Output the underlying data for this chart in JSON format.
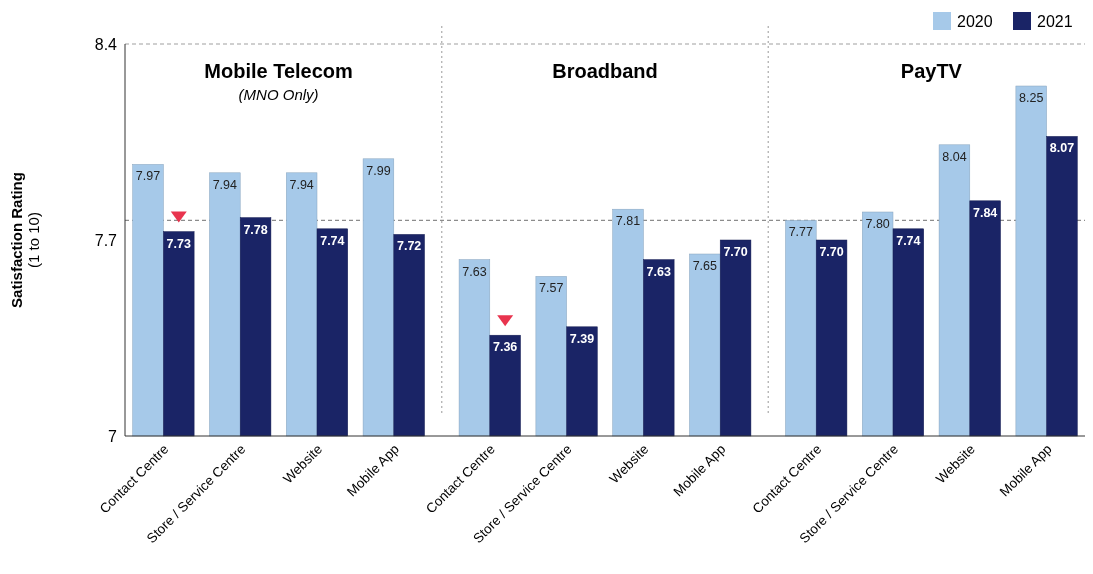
{
  "chart_data": {
    "type": "bar",
    "ylabel": "Satisfaction Rating\n(1 to 10)",
    "categories": [
      "Contact Centre",
      "Store / Service Centre",
      "Website",
      "Mobile App",
      "Contact Centre",
      "Store / Service Centre",
      "Website",
      "Mobile App",
      "Contact Centre",
      "Store / Service Centre",
      "Website",
      "Mobile App"
    ],
    "series": [
      {
        "name": "2020",
        "color": "#a6c9e9",
        "values": [
          7.97,
          7.94,
          7.94,
          7.99,
          7.63,
          7.57,
          7.81,
          7.65,
          7.77,
          7.8,
          8.04,
          8.25
        ],
        "value_labels": [
          "7.97",
          "7.94",
          "7.94",
          "7.99",
          "7.63",
          "7.57",
          "7.81",
          "7.65",
          "7.77",
          "7.80",
          "8.04",
          "8.25"
        ]
      },
      {
        "name": "2021",
        "color": "#1a2466",
        "values": [
          7.73,
          7.78,
          7.74,
          7.72,
          7.36,
          7.39,
          7.63,
          7.7,
          7.7,
          7.74,
          7.84,
          8.07
        ],
        "value_labels": [
          "7.73",
          "7.78",
          "7.74",
          "7.72",
          "7.36",
          "7.39",
          "7.63",
          "7.70",
          "7.70",
          "7.74",
          "7.84",
          "8.07"
        ]
      }
    ],
    "ylim": [
      7,
      8.4
    ],
    "yticks": [
      7,
      7.7,
      8.4
    ],
    "grid": false,
    "legend": "top right",
    "ref_lines": [
      {
        "axis": "y",
        "value": 8.4,
        "line_style": "dashed",
        "color": "#a0a0a0"
      },
      {
        "axis": "y",
        "value": 7.77,
        "line_style": "dashed",
        "color": "#8c8c8c"
      }
    ],
    "annotations": [
      "Mobile Telecom\n(MNO Only)",
      "Broadband",
      "PayTV"
    ]
  }
}
